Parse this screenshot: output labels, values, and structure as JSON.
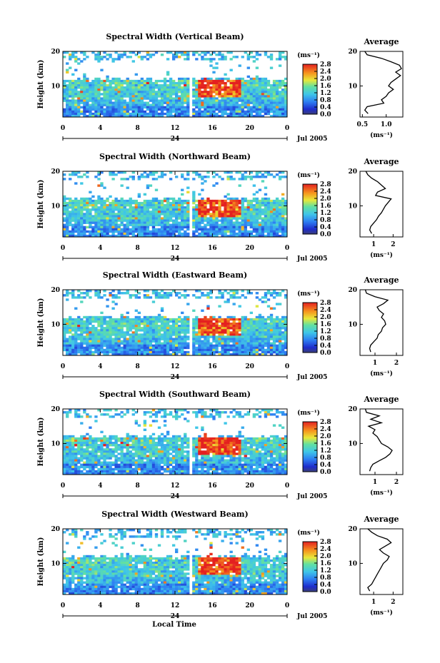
{
  "figure": {
    "xlabel": "Local Time",
    "date_label": "Jul 2005",
    "day_label": "24",
    "ylabel": "Height (km)",
    "cbar_unit": "(ms⁻¹)",
    "avg_unit": "(ms⁻¹)",
    "avg_title": "Average"
  },
  "chart_data": [
    {
      "type": "heatmap",
      "title": "Spectral Width (Vertical Beam)",
      "xlabel": "Local Time",
      "ylabel": "Height (km)",
      "x_ticks": [
        "0",
        "4",
        "8",
        "12",
        "16",
        "20",
        "0"
      ],
      "y_ticks": [
        "10",
        "20"
      ],
      "xlim": [
        0,
        24
      ],
      "ylim": [
        1,
        20
      ],
      "colorbar": {
        "label": "(ms⁻¹)",
        "ticks": [
          "0.0",
          "0.4",
          "0.8",
          "1.2",
          "1.6",
          "2.0",
          "2.4",
          "2.8"
        ],
        "range": [
          0,
          2.8
        ]
      },
      "data_gap_hour": 13.6,
      "average_profile": {
        "title": "Average",
        "xlabel": "(ms⁻¹)",
        "x_ticks": [
          "0.5",
          "1.0"
        ],
        "xlim": [
          0.45,
          1.35
        ],
        "height": [
          2,
          3,
          4,
          5,
          6,
          7,
          8,
          9,
          10,
          11,
          12,
          13,
          14,
          15,
          16,
          17,
          18,
          19,
          20
        ],
        "value": [
          0.62,
          0.55,
          0.6,
          0.95,
          0.9,
          1.0,
          1.05,
          1.15,
          1.05,
          1.1,
          1.2,
          1.3,
          1.2,
          1.32,
          1.28,
          1.1,
          0.9,
          0.6,
          0.55
        ]
      }
    },
    {
      "type": "heatmap",
      "title": "Spectral Width (Northward Beam)",
      "xlabel": "Local Time",
      "ylabel": "Height (km)",
      "x_ticks": [
        "0",
        "4",
        "8",
        "12",
        "16",
        "20",
        "0"
      ],
      "y_ticks": [
        "10",
        "20"
      ],
      "xlim": [
        0,
        24
      ],
      "ylim": [
        1,
        20
      ],
      "colorbar": {
        "label": "(ms⁻¹)",
        "ticks": [
          "0.0",
          "0.4",
          "0.8",
          "1.2",
          "1.6",
          "2.0",
          "2.4",
          "2.8"
        ],
        "range": [
          0,
          2.8
        ]
      },
      "data_gap_hour": 13.6,
      "average_profile": {
        "title": "Average",
        "xlabel": "(ms⁻¹)",
        "x_ticks": [
          "1",
          "2"
        ],
        "xlim": [
          0.3,
          2.5
        ],
        "height": [
          2,
          3,
          4,
          5,
          6,
          7,
          8,
          9,
          10,
          11,
          12,
          13,
          14,
          15,
          16,
          17,
          18,
          19,
          20
        ],
        "value": [
          0.9,
          0.8,
          0.85,
          1.0,
          1.15,
          1.25,
          1.4,
          1.5,
          1.6,
          1.75,
          1.9,
          1.1,
          1.2,
          1.6,
          1.4,
          1.2,
          0.9,
          0.7,
          0.6
        ]
      }
    },
    {
      "type": "heatmap",
      "title": "Spectral Width (Eastward Beam)",
      "xlabel": "Local Time",
      "ylabel": "Height (km)",
      "x_ticks": [
        "0",
        "4",
        "8",
        "12",
        "16",
        "20",
        "0"
      ],
      "y_ticks": [
        "10",
        "20"
      ],
      "xlim": [
        0,
        24
      ],
      "ylim": [
        1,
        20
      ],
      "colorbar": {
        "label": "(ms⁻¹)",
        "ticks": [
          "0.0",
          "0.4",
          "0.8",
          "1.2",
          "1.6",
          "2.0",
          "2.4",
          "2.8"
        ],
        "range": [
          0,
          2.8
        ]
      },
      "data_gap_hour": 13.6,
      "average_profile": {
        "title": "Average",
        "xlabel": "(ms⁻¹)",
        "x_ticks": [
          "1",
          "2"
        ],
        "xlim": [
          0.3,
          2.3
        ],
        "height": [
          2,
          3,
          4,
          5,
          6,
          7,
          8,
          9,
          10,
          11,
          12,
          13,
          14,
          15,
          16,
          17,
          18,
          19,
          20
        ],
        "value": [
          0.8,
          0.75,
          0.8,
          0.95,
          1.1,
          1.15,
          1.3,
          1.35,
          1.5,
          1.45,
          1.3,
          1.4,
          1.2,
          1.1,
          1.4,
          1.6,
          1.0,
          0.6,
          0.55
        ]
      }
    },
    {
      "type": "heatmap",
      "title": "Spectral Width (Southward Beam)",
      "xlabel": "Local Time",
      "ylabel": "Height (km)",
      "x_ticks": [
        "0",
        "4",
        "8",
        "12",
        "16",
        "20",
        "0"
      ],
      "y_ticks": [
        "10",
        "20"
      ],
      "xlim": [
        0,
        24
      ],
      "ylim": [
        1,
        20
      ],
      "colorbar": {
        "label": "(ms⁻¹)",
        "ticks": [
          "0.0",
          "0.4",
          "0.8",
          "1.2",
          "1.6",
          "2.0",
          "2.4",
          "2.8"
        ],
        "range": [
          0,
          2.8
        ]
      },
      "data_gap_hour": 13.6,
      "average_profile": {
        "title": "Average",
        "xlabel": "(ms⁻¹)",
        "x_ticks": [
          "1",
          "2"
        ],
        "xlim": [
          0.3,
          2.3
        ],
        "height": [
          2,
          3,
          4,
          5,
          6,
          7,
          8,
          9,
          10,
          11,
          12,
          13,
          14,
          15,
          16,
          17,
          18,
          19,
          20
        ],
        "value": [
          0.75,
          0.8,
          0.9,
          1.2,
          1.5,
          1.7,
          1.8,
          1.6,
          1.3,
          1.2,
          1.1,
          0.9,
          1.0,
          0.7,
          1.3,
          0.8,
          1.2,
          0.6,
          0.55
        ]
      }
    },
    {
      "type": "heatmap",
      "title": "Spectral Width (Westward Beam)",
      "xlabel": "Local Time",
      "ylabel": "Height (km)",
      "x_ticks": [
        "0",
        "4",
        "8",
        "12",
        "16",
        "20",
        "0"
      ],
      "y_ticks": [
        "10",
        "20"
      ],
      "xlim": [
        0,
        24
      ],
      "ylim": [
        1,
        20
      ],
      "colorbar": {
        "label": "(ms⁻¹)",
        "ticks": [
          "0.0",
          "0.4",
          "0.8",
          "1.2",
          "1.6",
          "2.0",
          "2.4",
          "2.8"
        ],
        "range": [
          0,
          2.8
        ]
      },
      "data_gap_hour": 13.6,
      "average_profile": {
        "title": "Average",
        "xlabel": "(ms⁻¹)",
        "x_ticks": [
          "1",
          "2"
        ],
        "xlim": [
          0.3,
          2.5
        ],
        "height": [
          2,
          3,
          4,
          5,
          6,
          7,
          8,
          9,
          10,
          11,
          12,
          13,
          14,
          15,
          16,
          17,
          18,
          19,
          20
        ],
        "value": [
          0.8,
          0.7,
          0.9,
          1.0,
          1.1,
          1.2,
          1.3,
          1.4,
          1.5,
          1.7,
          1.8,
          1.5,
          1.3,
          1.6,
          1.9,
          1.7,
          1.2,
          0.9,
          0.7
        ]
      }
    }
  ]
}
